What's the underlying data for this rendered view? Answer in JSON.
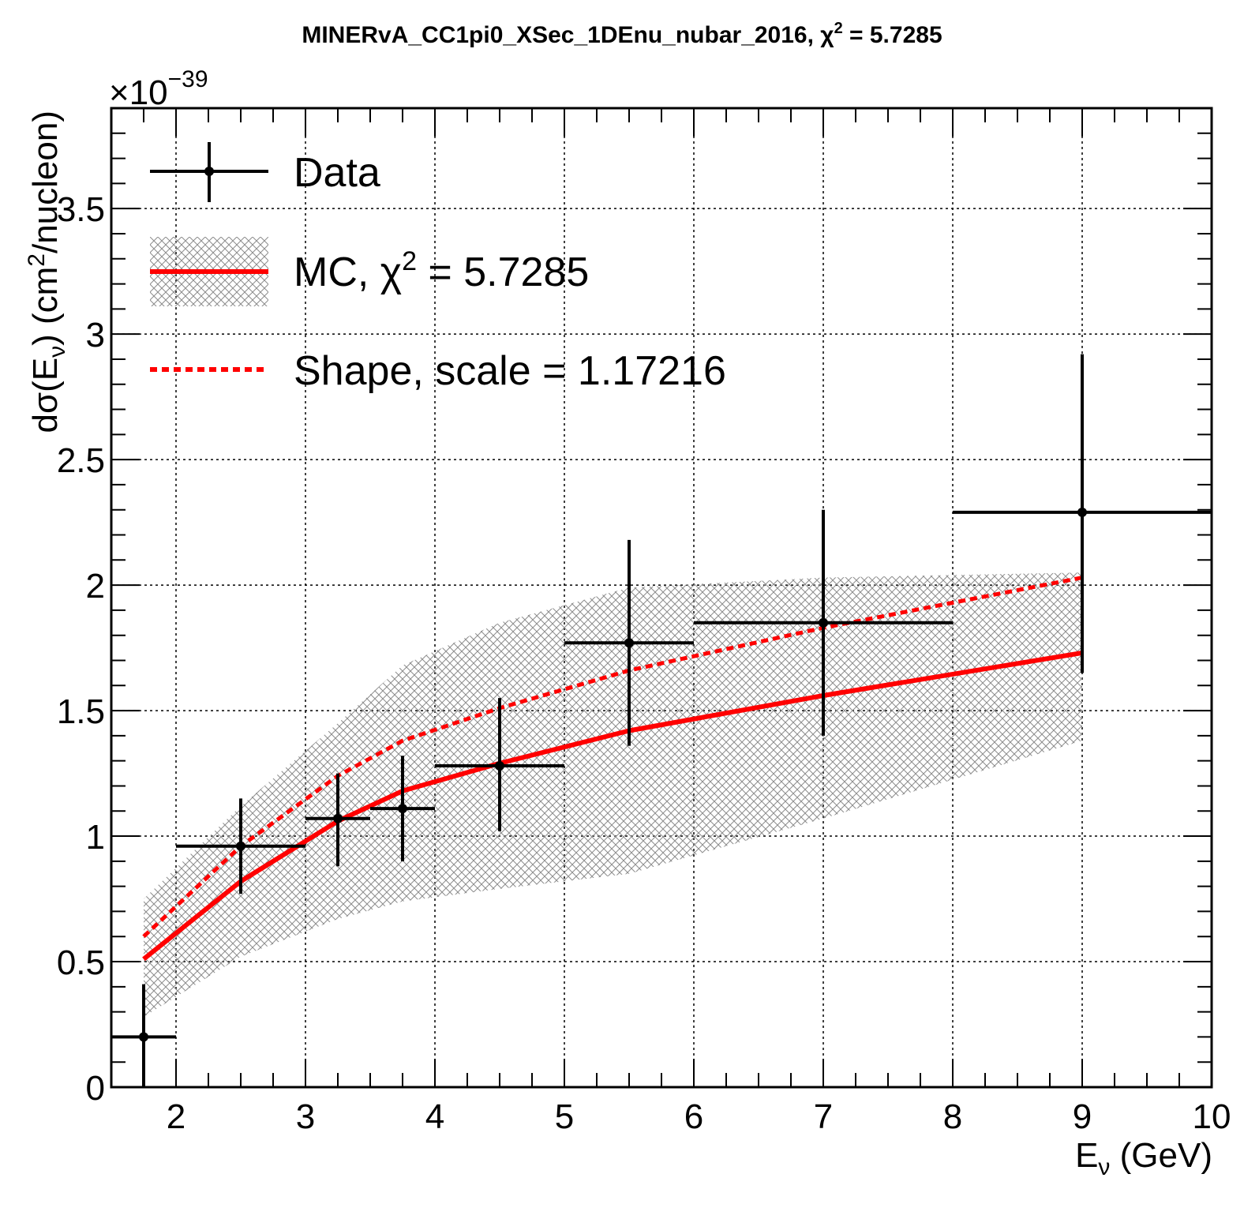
{
  "chart_data": {
    "type": "scatter",
    "title": "MINERvA_CC1pi0_XSec_1DEnu_nubar_2016, χ² = 5.7285",
    "title_parts": {
      "prefix": "MINERvA_CC1pi0_XSec_1DEnu_nubar_2016, χ",
      "sup": "2",
      "suffix": " = 5.7285"
    },
    "xlabel": "Eν (GeV)",
    "xlabel_parts": {
      "main": "E",
      "sub": "ν",
      "rest": " (GeV)"
    },
    "ylabel": "dσ(Eν) (cm²/nucleon)",
    "ylabel_parts": {
      "a": "dσ(E",
      "sub": "ν",
      "b": ") (cm",
      "sup": "2",
      "c": "/nucleon)"
    },
    "y_multiplier": {
      "base": "×10",
      "exp": "−39"
    },
    "xlim": [
      1.5,
      10
    ],
    "ylim": [
      0,
      3.9
    ],
    "x_ticks": [
      "2",
      "3",
      "4",
      "5",
      "6",
      "7",
      "8",
      "9",
      "10"
    ],
    "y_ticks": [
      "0",
      "0.5",
      "1",
      "1.5",
      "2",
      "2.5",
      "3",
      "3.5"
    ],
    "grid": true,
    "legend_position": "top-left",
    "colors": {
      "data": "#000000",
      "mc": "#ff0000",
      "band": "#8c8c8c"
    },
    "series": [
      {
        "name": "Data",
        "kind": "points-with-errors",
        "points": [
          {
            "x": 1.75,
            "y": 0.2,
            "xlo": 1.5,
            "xhi": 2.0,
            "ylo": 0.0,
            "yhi": 0.41
          },
          {
            "x": 2.5,
            "y": 0.96,
            "xlo": 2.0,
            "xhi": 3.0,
            "ylo": 0.77,
            "yhi": 1.15
          },
          {
            "x": 3.25,
            "y": 1.07,
            "xlo": 3.0,
            "xhi": 3.5,
            "ylo": 0.88,
            "yhi": 1.25
          },
          {
            "x": 3.75,
            "y": 1.11,
            "xlo": 3.5,
            "xhi": 4.0,
            "ylo": 0.9,
            "yhi": 1.32
          },
          {
            "x": 4.5,
            "y": 1.28,
            "xlo": 4.0,
            "xhi": 5.0,
            "ylo": 1.02,
            "yhi": 1.55
          },
          {
            "x": 5.5,
            "y": 1.77,
            "xlo": 5.0,
            "xhi": 6.0,
            "ylo": 1.36,
            "yhi": 2.18
          },
          {
            "x": 7.0,
            "y": 1.85,
            "xlo": 6.0,
            "xhi": 8.0,
            "ylo": 1.4,
            "yhi": 2.3
          },
          {
            "x": 9.0,
            "y": 2.29,
            "xlo": 8.0,
            "xhi": 10.0,
            "ylo": 1.65,
            "yhi": 2.92
          }
        ]
      },
      {
        "name": "MC, χ² = 5.7285",
        "kind": "line-with-band",
        "x": [
          1.75,
          2.5,
          3.25,
          3.75,
          4.5,
          5.5,
          7.0,
          9.0
        ],
        "y": [
          0.51,
          0.82,
          1.06,
          1.18,
          1.29,
          1.42,
          1.56,
          1.73
        ],
        "band_lo": [
          0.28,
          0.52,
          0.67,
          0.74,
          0.79,
          0.85,
          1.07,
          1.38
        ],
        "band_hi": [
          0.75,
          1.12,
          1.45,
          1.68,
          1.85,
          1.99,
          2.03,
          2.05
        ]
      },
      {
        "name": "Shape, scale = 1.17216",
        "kind": "dashed-line",
        "x": [
          1.75,
          2.5,
          3.25,
          3.75,
          4.5,
          5.5,
          7.0,
          9.0
        ],
        "y": [
          0.6,
          0.96,
          1.24,
          1.38,
          1.51,
          1.66,
          1.83,
          2.03
        ]
      }
    ],
    "legend": {
      "data_label": "Data",
      "mc_label_parts": {
        "prefix": "MC, χ",
        "sup": "2",
        "suffix": " = 5.7285"
      },
      "shape_label": "Shape, scale = 1.17216"
    }
  }
}
